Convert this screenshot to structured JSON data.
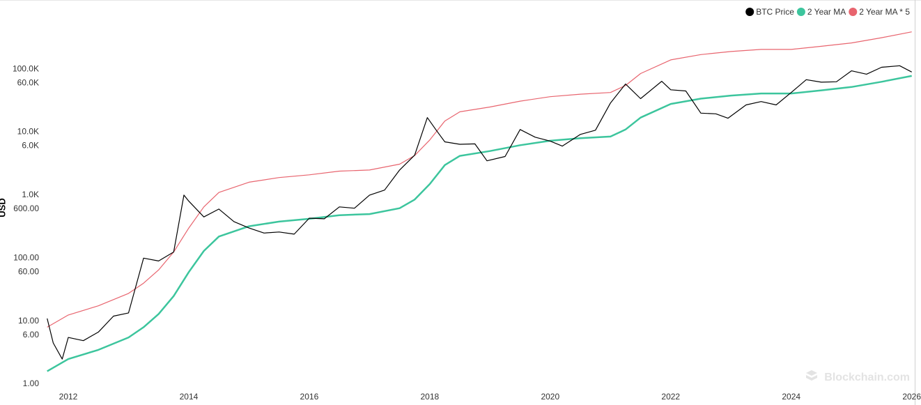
{
  "chart_data": {
    "type": "line",
    "y_label": "USD",
    "watermark": "Blockchain.com",
    "log_scale": true,
    "grid": false,
    "legend": "top-right",
    "xlim": [
      2011.63,
      2026.05
    ],
    "xticks": [
      2012,
      2014,
      2016,
      2018,
      2020,
      2022,
      2024,
      2026
    ],
    "ylim": [
      0.55,
      1100000
    ],
    "yticks": [
      {
        "value": 1,
        "label": "1.00"
      },
      {
        "value": 6,
        "label": "6.00"
      },
      {
        "value": 10,
        "label": "10.00"
      },
      {
        "value": 60,
        "label": "60.00"
      },
      {
        "value": 100,
        "label": "100.00"
      },
      {
        "value": 600,
        "label": "600.00"
      },
      {
        "value": 1000,
        "label": "1.0K"
      },
      {
        "value": 6000,
        "label": "6.0K"
      },
      {
        "value": 10000,
        "label": "10.0K"
      },
      {
        "value": 60000,
        "label": "60.0K"
      },
      {
        "value": 100000,
        "label": "100.0K"
      }
    ],
    "series": [
      {
        "name": "BTC Price",
        "color": "#000000",
        "x": [
          2011.65,
          2011.75,
          2011.9,
          2012.0,
          2012.25,
          2012.5,
          2012.75,
          2013.0,
          2013.25,
          2013.5,
          2013.75,
          2013.92,
          2014.0,
          2014.25,
          2014.5,
          2014.75,
          2015.0,
          2015.25,
          2015.5,
          2015.75,
          2016.0,
          2016.25,
          2016.5,
          2016.75,
          2017.0,
          2017.25,
          2017.5,
          2017.75,
          2017.96,
          2018.1,
          2018.25,
          2018.5,
          2018.75,
          2018.95,
          2019.25,
          2019.5,
          2019.75,
          2020.0,
          2020.2,
          2020.5,
          2020.75,
          2021.0,
          2021.25,
          2021.5,
          2021.85,
          2022.0,
          2022.25,
          2022.5,
          2022.75,
          2022.95,
          2023.25,
          2023.5,
          2023.75,
          2024.0,
          2024.25,
          2024.5,
          2024.75,
          2025.0,
          2025.25,
          2025.5,
          2025.8,
          2026.0
        ],
        "values": [
          11,
          4.5,
          2.5,
          5.5,
          4.9,
          6.7,
          12,
          13.5,
          100,
          90,
          125,
          1000,
          800,
          450,
          600,
          380,
          300,
          250,
          260,
          240,
          430,
          420,
          650,
          620,
          1000,
          1200,
          2500,
          4300,
          17000,
          11000,
          7000,
          6400,
          6500,
          3500,
          4100,
          11000,
          8300,
          7200,
          6000,
          9200,
          10700,
          29000,
          58000,
          34000,
          64000,
          47000,
          45000,
          20000,
          19500,
          16600,
          27000,
          30500,
          27000,
          42500,
          68000,
          62000,
          63000,
          94000,
          83000,
          107000,
          113000,
          90000
        ]
      },
      {
        "name": "2 Year MA",
        "color": "#3cc59d",
        "x": [
          2011.65,
          2012,
          2012.5,
          2013,
          2013.25,
          2013.5,
          2013.75,
          2014,
          2014.25,
          2014.5,
          2015,
          2015.5,
          2016,
          2016.5,
          2017,
          2017.5,
          2017.75,
          2018,
          2018.25,
          2018.5,
          2019,
          2019.5,
          2020,
          2020.5,
          2021,
          2021.25,
          2021.5,
          2022,
          2022.5,
          2023,
          2023.5,
          2024,
          2024.5,
          2025,
          2025.5,
          2026
        ],
        "values": [
          1.6,
          2.5,
          3.5,
          5.5,
          8,
          13,
          25,
          60,
          130,
          220,
          320,
          380,
          420,
          480,
          500,
          620,
          850,
          1500,
          3000,
          4200,
          5000,
          6200,
          7300,
          8000,
          8500,
          11000,
          17000,
          28000,
          34000,
          38000,
          41000,
          41000,
          46000,
          52000,
          63000,
          78000
        ]
      },
      {
        "name": "2 Year MA * 5",
        "color": "#e8646e",
        "x": [
          2011.65,
          2012,
          2012.5,
          2013,
          2013.25,
          2013.5,
          2013.75,
          2014,
          2014.25,
          2014.5,
          2015,
          2015.5,
          2016,
          2016.5,
          2017,
          2017.5,
          2017.75,
          2018,
          2018.25,
          2018.5,
          2019,
          2019.5,
          2020,
          2020.5,
          2021,
          2021.25,
          2021.5,
          2022,
          2022.5,
          2023,
          2023.5,
          2024,
          2024.5,
          2025,
          2025.5,
          2026
        ],
        "values": [
          8,
          12.5,
          17.5,
          27.5,
          40,
          65,
          125,
          300,
          650,
          1100,
          1600,
          1900,
          2100,
          2400,
          2500,
          3100,
          4250,
          7500,
          15000,
          21000,
          25000,
          31000,
          36500,
          40000,
          42500,
          55000,
          85000,
          140000,
          170000,
          190000,
          205000,
          205000,
          230000,
          260000,
          315000,
          390000
        ]
      }
    ]
  }
}
